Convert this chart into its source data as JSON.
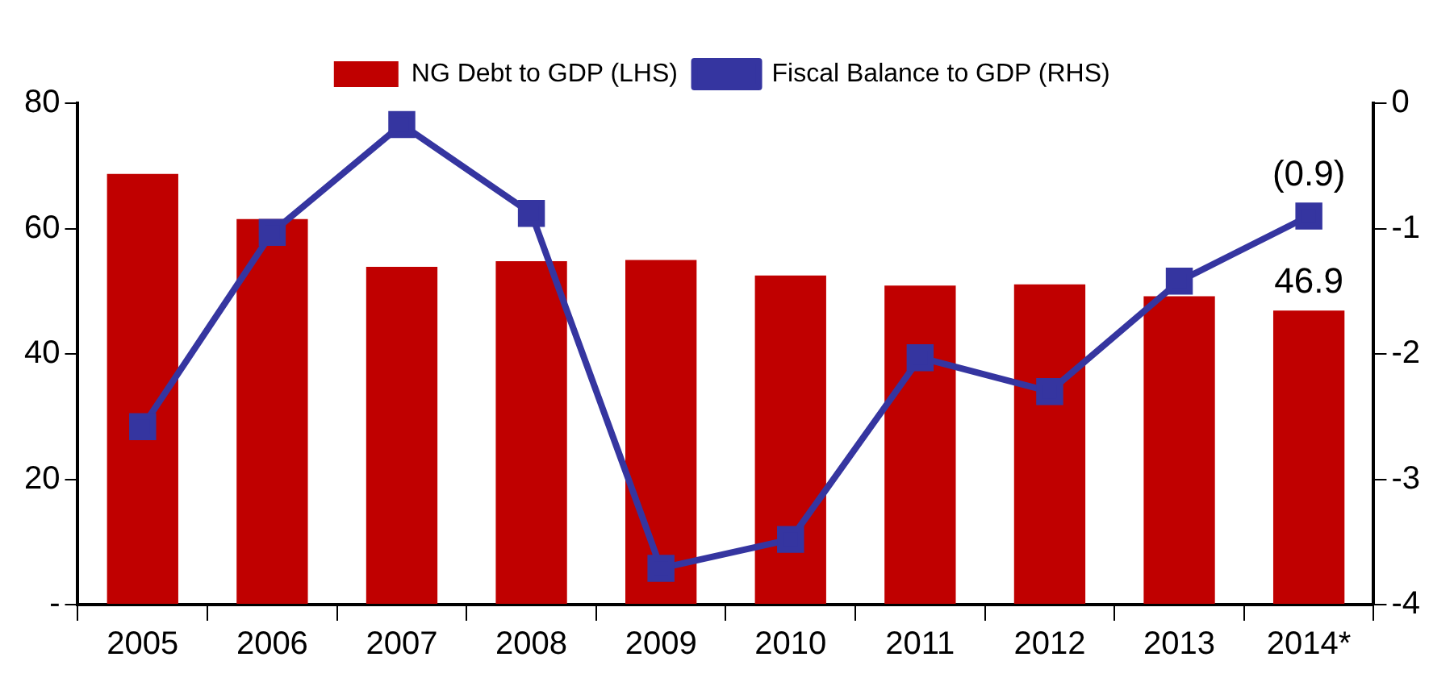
{
  "chart_data": {
    "type": "bar",
    "categories": [
      "2005",
      "2006",
      "2007",
      "2008",
      "2009",
      "2010",
      "2011",
      "2012",
      "2013",
      "2014*"
    ],
    "series": [
      {
        "name": "NG Debt to GDP (LHS)",
        "color": "#c00000",
        "values": [
          68.7,
          61.5,
          53.9,
          54.8,
          55.0,
          52.5,
          50.9,
          51.1,
          49.2,
          46.9
        ],
        "value_labels": [
          null,
          null,
          null,
          null,
          null,
          null,
          null,
          null,
          null,
          "46.9"
        ]
      },
      {
        "name": "Fiscal Balance to GDP (RHS)",
        "type": "line",
        "axis": "y2",
        "color": "#3535a0",
        "marker": "square",
        "values": [
          -2.58,
          -1.03,
          -0.17,
          -0.88,
          -3.71,
          -3.48,
          -2.03,
          -2.3,
          -1.42,
          -0.9
        ],
        "value_labels": [
          null,
          null,
          null,
          null,
          null,
          null,
          null,
          null,
          null,
          "(0.9)"
        ]
      }
    ],
    "ylim": [
      0,
      80
    ],
    "yticks": [
      {
        "value": 0,
        "label": "-"
      },
      20,
      40,
      60,
      80
    ],
    "y2lim": [
      -4,
      0
    ],
    "y2ticks": [
      -4,
      -3,
      -2,
      -1,
      0
    ],
    "grid": false,
    "legend": "top"
  }
}
